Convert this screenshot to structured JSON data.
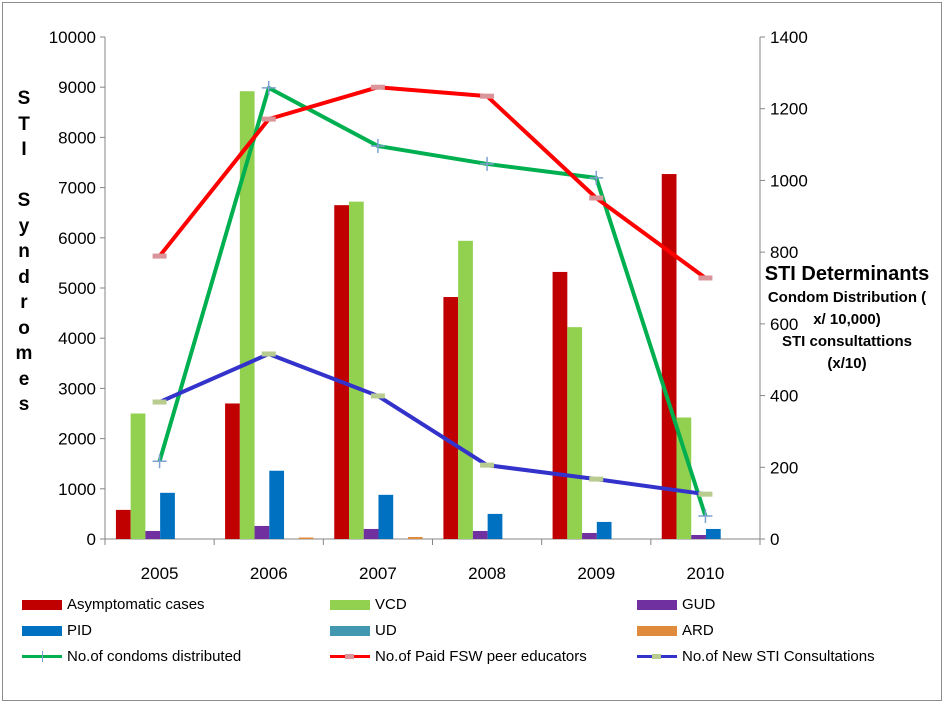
{
  "chart_data": {
    "type": "bar+line",
    "categories": [
      "2005",
      "2006",
      "2007",
      "2008",
      "2009",
      "2010"
    ],
    "ylabel": "STI Syndromes",
    "ylabel2": {
      "title": "STI Determinants",
      "lines": [
        "Condom Distribution (",
        "x/ 10,000)",
        "STI consultattions",
        "(x/10)"
      ]
    },
    "ylim": [
      0,
      10000
    ],
    "y_ticks": [
      "0",
      "1000",
      "2000",
      "3000",
      "4000",
      "5000",
      "6000",
      "7000",
      "8000",
      "9000",
      "10000"
    ],
    "y2lim": [
      0,
      1400
    ],
    "y2_ticks": [
      "0",
      "200",
      "400",
      "600",
      "800",
      "1000",
      "1200",
      "1400"
    ],
    "grid": false,
    "legend_position": "bottom",
    "bar_series": [
      {
        "name": "Asymptomatic cases",
        "color": "#c00000",
        "values": [
          580,
          2700,
          6650,
          4820,
          5320,
          7270
        ]
      },
      {
        "name": "VCD",
        "color": "#92d050",
        "values": [
          2500,
          8920,
          6720,
          5940,
          4220,
          2420
        ]
      },
      {
        "name": "GUD",
        "color": "#7030a0",
        "values": [
          160,
          260,
          200,
          160,
          120,
          80
        ]
      },
      {
        "name": "PID",
        "color": "#0070c0",
        "values": [
          920,
          1360,
          880,
          500,
          340,
          200
        ]
      },
      {
        "name": "UD",
        "color": "#4198b0",
        "values": [
          0,
          0,
          0,
          0,
          0,
          0
        ]
      },
      {
        "name": "ARD",
        "color": "#e08a3c",
        "values": [
          0,
          30,
          40,
          0,
          0,
          0
        ]
      }
    ],
    "line_series": [
      {
        "name": "No.of condoms distributed",
        "color": "#00b050",
        "marker": "cross",
        "marker_color": "#7fa0d0",
        "axis": "right",
        "values": [
          217,
          1258,
          1096,
          1046,
          1007,
          64
        ]
      },
      {
        "name": "No.of Paid FSW peer educators",
        "color": "#ff0000",
        "marker": "dash",
        "marker_color": "#d9959a",
        "axis": "right",
        "values": [
          789,
          1171,
          1260,
          1235,
          951,
          728
        ]
      },
      {
        "name": "No.of New STI Consultations",
        "color": "#3333cc",
        "marker": "dash",
        "marker_color": "#b8cc90",
        "axis": "right",
        "values": [
          382,
          516,
          399,
          206,
          167,
          125
        ]
      }
    ]
  }
}
